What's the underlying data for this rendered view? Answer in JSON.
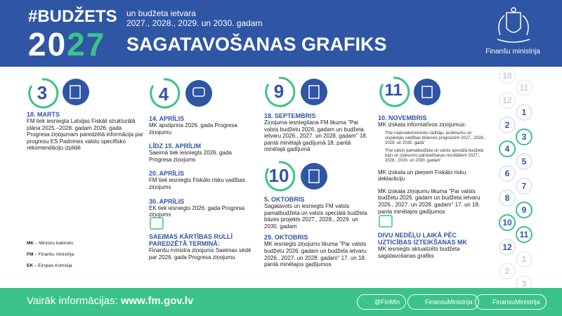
{
  "header": {
    "hashtag": "#BUDŽETS",
    "year_start": "20",
    "year_end": "27",
    "subtitle_lines": [
      "un budžeta ietvara",
      "2027., 2028., 2029. un 2030. gadam"
    ],
    "title": "SAGATAVOŠANAS GRAFIKS",
    "ministry": "Finanšu ministrija"
  },
  "columns": [
    {
      "month": "3",
      "entries": [
        {
          "date": "18. MARTS",
          "text": "FM tiek iesniegta Latvijas Fiskāli strukturālā plāna 2025.–2028. gadam 2026. gada Progresa ziņojumam paredzētā informācija par progresu ES Padomes valstu specifisko rekomendāciju izpildē"
        }
      ]
    },
    {
      "month": "4",
      "entries": [
        {
          "date": "14. APRĪLIS",
          "text": "MK apstiprina 2026. gada Progresa ziņojumu"
        },
        {
          "date": "LĪDZ 15. APRĪLIM",
          "text": "Saeimā tiek iesniegts 2026. gada Progresa ziņojums"
        },
        {
          "date": "20. APRĪLIS",
          "text": "FM tiek iesniegts Fiskālo risku vadības ziņojums"
        },
        {
          "date": "30. APRĪLIS",
          "text": "EK tiek iesniegts 2026. gada Progresa ziņojums"
        }
      ],
      "deadline": {
        "heading": "SAEIMAS KĀRTĪBAS RULLĪ PAREDZĒTĀ TERMIŅĀ:",
        "text": "Finanšu ministra ziņojums Saeimas sēdē par 2026. gada Progresa ziņojumu"
      }
    },
    {
      "month": "9",
      "entries": [
        {
          "date": "18. SEPTEMBRIS",
          "text": "Ziņojuma iesniegšana FM likuma \"Par valsts budžetu 2026. gadam un budžeta ietvaru 2026., 2027. un 2028. gadam\" 18. pantā minētajā gadījumā 18. pantā minētajā gadījumā"
        }
      ]
    },
    {
      "month": "10",
      "entries": [
        {
          "date": "5. OKTOBRIS",
          "text": "Sagatavots un iesniegts FM valsts pamatbudžeta un valsts speciālā budžeta bāzes projekts 2027., 2028., 2029. un 2030. gadam"
        },
        {
          "date": "29. OKTOBRIS",
          "text": "MK iesniegts ziņojums likuma \"Par valsts budžetu 2026. gadam un budžeta ietvaru 2026., 2027. un 2028. gadam\" 17. un 18. pantā minētajos gadījumos"
        }
      ]
    },
    {
      "month": "11",
      "entries": [
        {
          "date": "10. NOVEMBRIS",
          "text": "MK izskata informatīvos ziņojumus:",
          "bullets": [
            "“Par makroekonomisko rādītāju, ieņēmumu un vispārējās valdības bilances prognozēm 2027., 2028., 2029. un 2030. gadā”",
            "“Par valsts pamatbudžeta un valsts speciālā budžeta bāzi un izdevumu pārskatīšanas rezultātiem 2027., 2028., 2029. un 2030. gadam”"
          ]
        }
      ],
      "notes": [
        "MK izskata un pieņem Fiskālo risku deklarāciju",
        "MK izskata ziņojumu likuma \"Par valsts budžetu 2026. gadam un budžeta ietvaru 2026., 2027. un 2028. gadam\" 17. un 18. panta minētajos gadījumos"
      ],
      "deadline": {
        "heading": "DIVU NEDĒĻU LAIKĀ PĒC UZTICĪBAS IZTEIKŠANAS MK",
        "text": "MK iesniegts aktualizēts budžeta sagatavošanas grafiks"
      }
    }
  ],
  "legend": [
    {
      "abbr": "MK",
      "text": "– Ministru kabinets"
    },
    {
      "abbr": "FM",
      "text": "– Finanšu ministrija"
    },
    {
      "abbr": "EK",
      "text": "– Eiropas Komisija"
    }
  ],
  "timeline": [
    "10",
    "11",
    "12",
    "1",
    "2",
    "3",
    "4",
    "5",
    "6",
    "7",
    "8",
    "9",
    "10",
    "11",
    "12",
    "1",
    "2",
    "3"
  ],
  "footer": {
    "label": "Vairāk informācijas:",
    "url": "www.fm.gov.lv",
    "socials": [
      "@FinMin",
      "FinansuMinistrija",
      "FinansuMinistrija"
    ]
  }
}
